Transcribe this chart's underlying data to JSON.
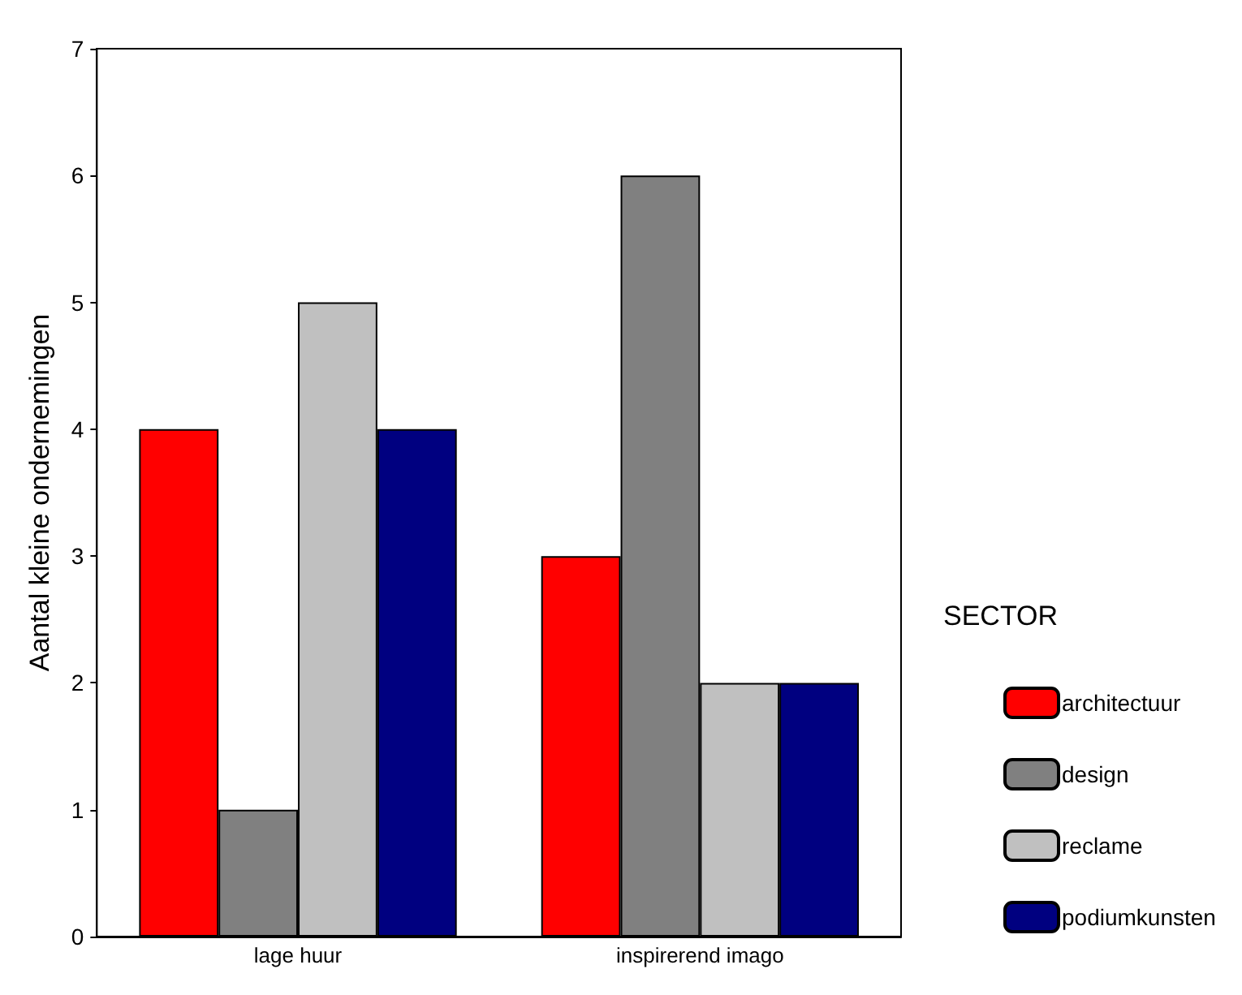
{
  "chart_data": {
    "type": "bar",
    "ylabel": "Aantal kleine ondernemingen",
    "legend_title": "SECTOR",
    "categories": [
      "lage huur",
      "inspirerend imago"
    ],
    "series": [
      {
        "name": "architectuur",
        "color": "#ff0000",
        "values": [
          4,
          3
        ]
      },
      {
        "name": "design",
        "color": "#808080",
        "values": [
          1,
          6
        ]
      },
      {
        "name": "reclame",
        "color": "#c0c0c0",
        "values": [
          5,
          2
        ]
      },
      {
        "name": "podiumkunsten",
        "color": "#000080",
        "values": [
          4,
          2
        ]
      }
    ],
    "ylim": [
      0,
      7
    ],
    "yticks": [
      0,
      1,
      2,
      3,
      4,
      5,
      6,
      7
    ],
    "grid": false,
    "legend": "right"
  }
}
